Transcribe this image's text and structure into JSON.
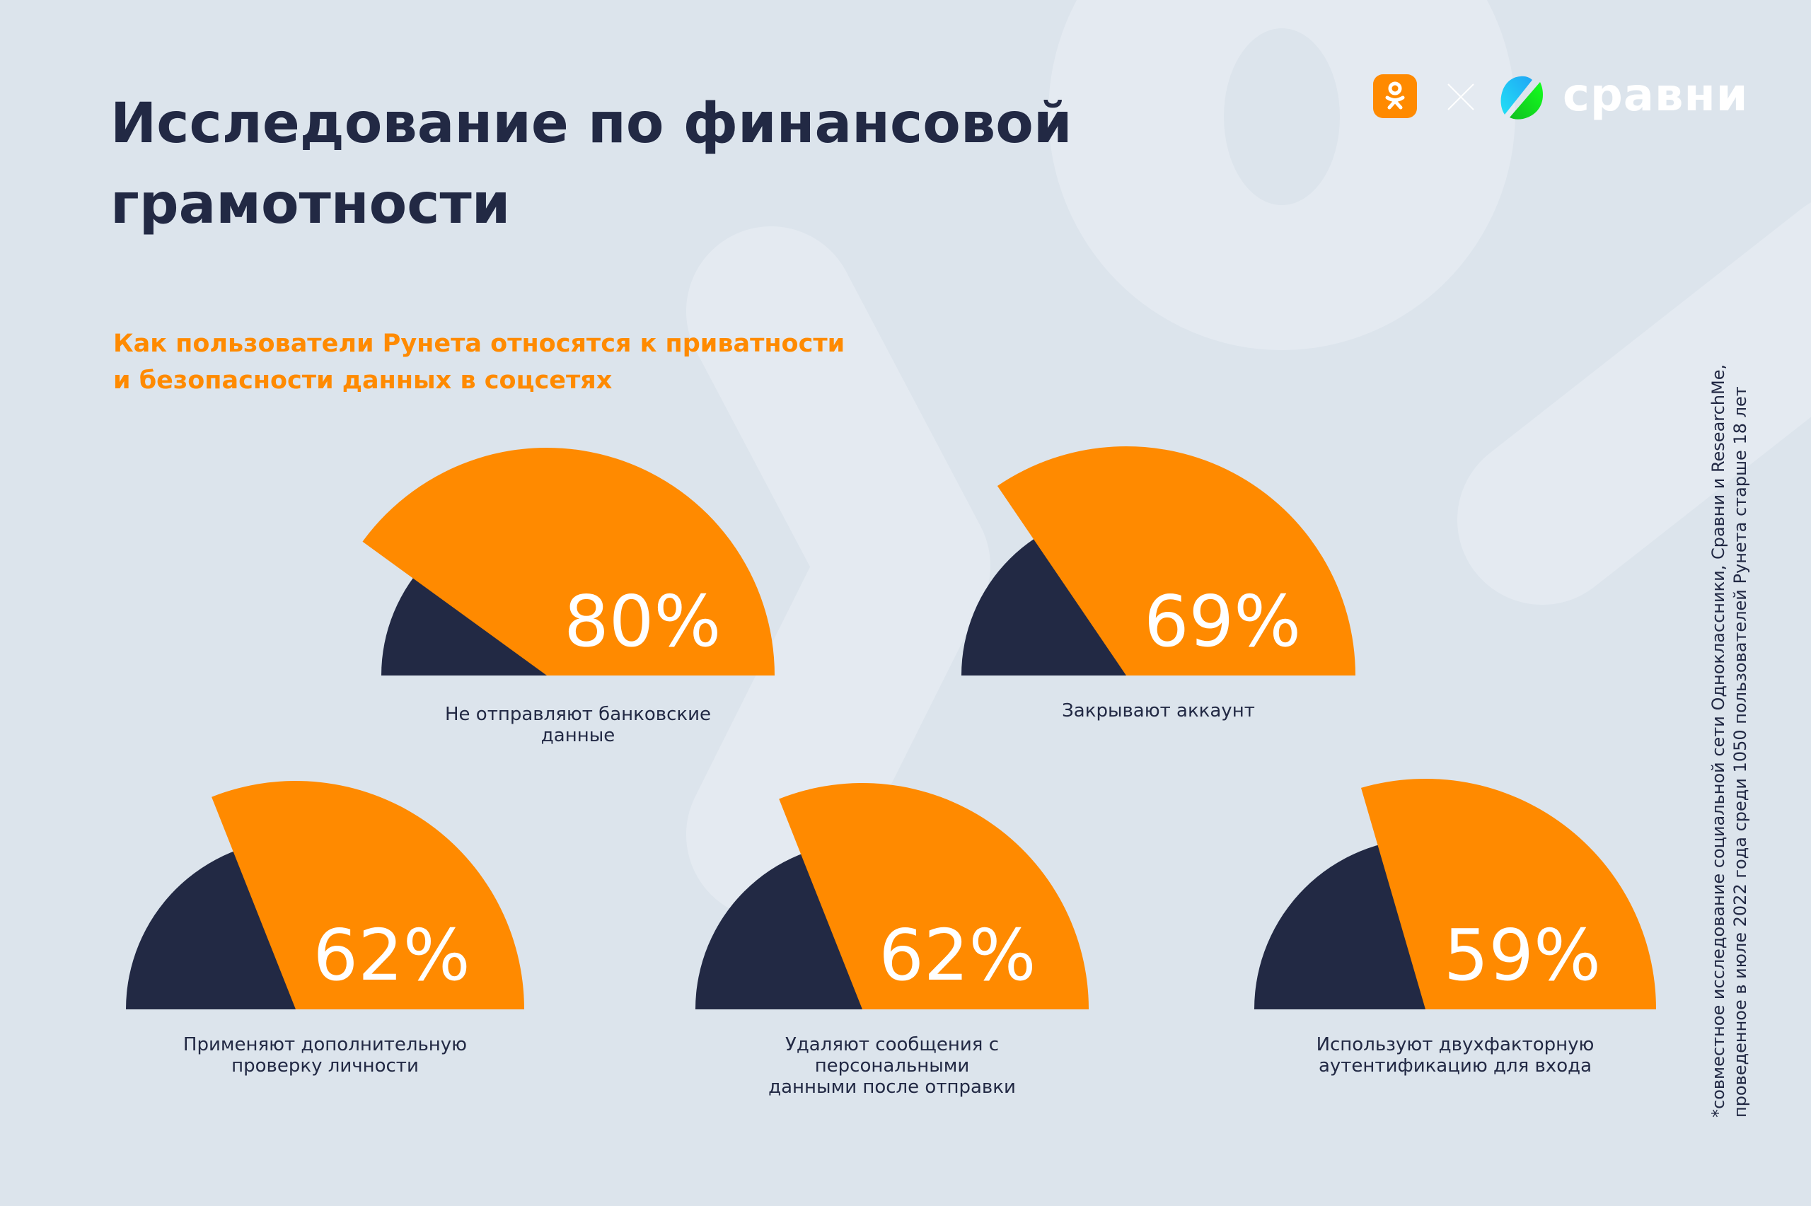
{
  "header": {
    "title_line1": "Исследование по финансовой",
    "title_line2": "грамотности",
    "subtitle_line1": "Как пользователи Рунета относятся к приватности",
    "subtitle_line2": "и безопасности данных в соцсетях"
  },
  "logos": {
    "ok_icon": "odnoklassniki-logo-icon",
    "separator": "times-icon",
    "sravni_mark": "sravni-logo-mark-icon",
    "sravni_word": "сравни"
  },
  "colors": {
    "background": "#dce4ec",
    "background_shape": "#e4eaf1",
    "orange": "#ff8a00",
    "navy": "#222944"
  },
  "chart_data": {
    "type": "gauge",
    "title": "Как пользователи Рунета относятся к приватности и безопасности данных в соцсетях",
    "unit": "%",
    "range": [
      0,
      100
    ],
    "items": [
      {
        "value": 80,
        "label": "80%",
        "caption_lines": [
          "Не отправляют банковские",
          "данные"
        ]
      },
      {
        "value": 69,
        "label": "69%",
        "caption_lines": [
          "Закрывают аккаунт"
        ]
      },
      {
        "value": 62,
        "label": "62%",
        "caption_lines": [
          "Применяют дополнительную",
          "проверку личности"
        ]
      },
      {
        "value": 62,
        "label": "62%",
        "caption_lines": [
          "Удаляют сообщения с персональными",
          "данными после отправки"
        ]
      },
      {
        "value": 59,
        "label": "59%",
        "caption_lines": [
          "Используют двухфакторную",
          "аутентификацию для входа"
        ]
      }
    ]
  },
  "footnote": {
    "line1": "*совместное исследование социальной сети Одноклассники, Сравни и ResearchMe,",
    "line2": "проведенное в июле 2022 года среди 1050 пользователей Рунета старше 18 лет"
  }
}
